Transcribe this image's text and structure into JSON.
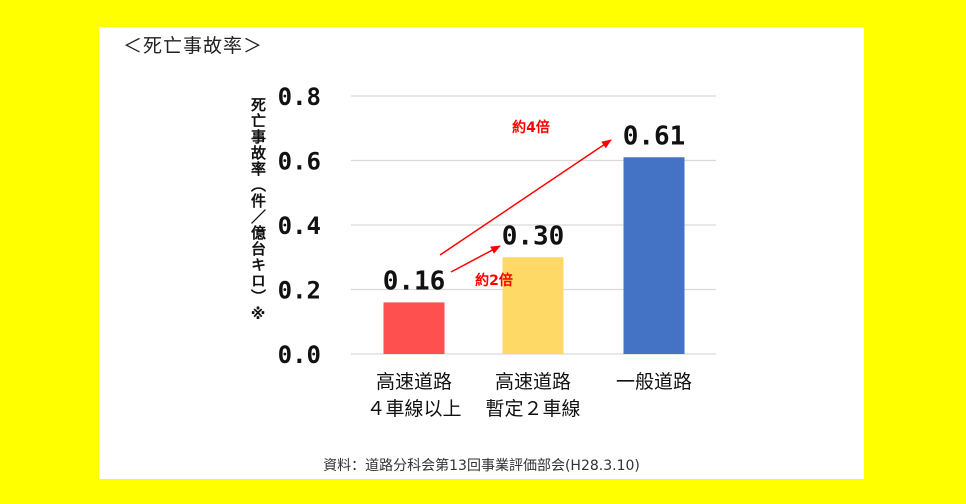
{
  "page": {
    "title": "＜死亡事故率＞",
    "source": "資料：道路分科会第13回事業評価部会(H28.3.10)"
  },
  "colors": {
    "background": "#FFFF00",
    "panel": "#FFFFFF",
    "annotation": "#FF0000",
    "bars": [
      "#FF5050",
      "#FFD966",
      "#4472C4"
    ]
  },
  "chart_data": {
    "type": "bar",
    "title": "＜死亡事故率＞",
    "xlabel": "",
    "ylabel": "死亡事故率（件／億台キロ）※",
    "ylim": [
      0.0,
      0.8
    ],
    "yticks": [
      "0.0",
      "0.2",
      "0.4",
      "0.6",
      "0.8"
    ],
    "grid": true,
    "categories": [
      [
        "高速道路",
        "４車線以上"
      ],
      [
        "高速道路",
        "暫定２車線"
      ],
      [
        "一般道路"
      ]
    ],
    "values": [
      0.16,
      0.3,
      0.61
    ],
    "value_labels": [
      "0.16",
      "0.30",
      "0.61"
    ],
    "annotations": [
      {
        "text": "約2倍",
        "from": 0,
        "to": 1
      },
      {
        "text": "約4倍",
        "from": 0,
        "to": 2
      }
    ]
  }
}
